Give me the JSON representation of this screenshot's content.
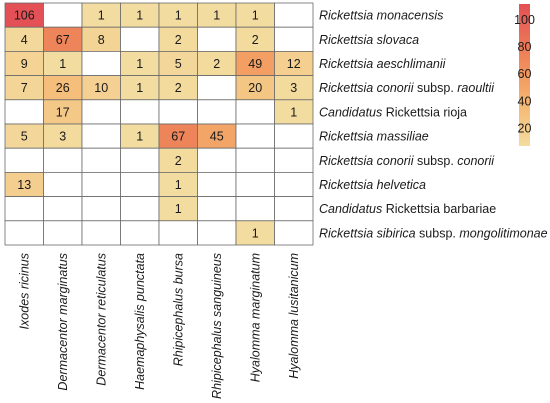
{
  "chart_data": {
    "type": "heatmap",
    "rows": [
      {
        "parts": [
          {
            "t": "Rickettsia monacensis",
            "i": true
          }
        ]
      },
      {
        "parts": [
          {
            "t": "Rickettsia slovaca",
            "i": true
          }
        ]
      },
      {
        "parts": [
          {
            "t": "Rickettsia aeschlimanii",
            "i": true
          }
        ]
      },
      {
        "parts": [
          {
            "t": "Rickettsia conorii",
            "i": true
          },
          {
            "t": " subsp. ",
            "i": false
          },
          {
            "t": "raoultii",
            "i": true
          }
        ]
      },
      {
        "parts": [
          {
            "t": "Candidatus",
            "i": true
          },
          {
            "t": " Rickettsia rioja",
            "i": false
          }
        ]
      },
      {
        "parts": [
          {
            "t": "Rickettsia massiliae",
            "i": true
          }
        ]
      },
      {
        "parts": [
          {
            "t": "Rickettsia conorii",
            "i": true
          },
          {
            "t": " subsp. ",
            "i": false
          },
          {
            "t": "conorii",
            "i": true
          }
        ]
      },
      {
        "parts": [
          {
            "t": "Rickettsia helvetica",
            "i": true
          }
        ]
      },
      {
        "parts": [
          {
            "t": "Candidatus",
            "i": true
          },
          {
            "t": " Rickettsia barbariae",
            "i": false
          }
        ]
      },
      {
        "parts": [
          {
            "t": "Rickettsia sibirica",
            "i": true
          },
          {
            "t": " subsp. ",
            "i": false
          },
          {
            "t": "mongolitimonae",
            "i": true
          }
        ]
      }
    ],
    "columns": [
      "Ixodes ricinus",
      "Dermacentor marginatus",
      "Dermacentor reticulatus",
      "Haemaphysalis punctata",
      "Rhipicephalus bursa",
      "Rhipicephalus sanguineus",
      "Hyalomma marginatum",
      "Hyalomma lusitanicum"
    ],
    "values": [
      [
        106,
        null,
        1,
        1,
        1,
        1,
        1,
        null
      ],
      [
        4,
        67,
        8,
        null,
        2,
        null,
        2,
        null
      ],
      [
        9,
        1,
        null,
        1,
        5,
        2,
        49,
        12
      ],
      [
        7,
        26,
        10,
        1,
        2,
        null,
        20,
        3
      ],
      [
        null,
        17,
        null,
        null,
        null,
        null,
        null,
        1
      ],
      [
        5,
        3,
        null,
        1,
        67,
        45,
        null,
        null
      ],
      [
        null,
        null,
        null,
        null,
        2,
        null,
        null,
        null
      ],
      [
        13,
        null,
        null,
        null,
        1,
        null,
        null,
        null
      ],
      [
        null,
        null,
        null,
        null,
        1,
        null,
        null,
        null
      ],
      [
        null,
        null,
        null,
        null,
        null,
        null,
        1,
        null
      ]
    ],
    "colorbar": {
      "ticks": [
        20,
        40,
        60,
        80,
        100
      ],
      "range": [
        1,
        106
      ],
      "colors": [
        "#f3dca0",
        "#f5bd78",
        "#f2985f",
        "#ea7256",
        "#e35055"
      ]
    }
  }
}
